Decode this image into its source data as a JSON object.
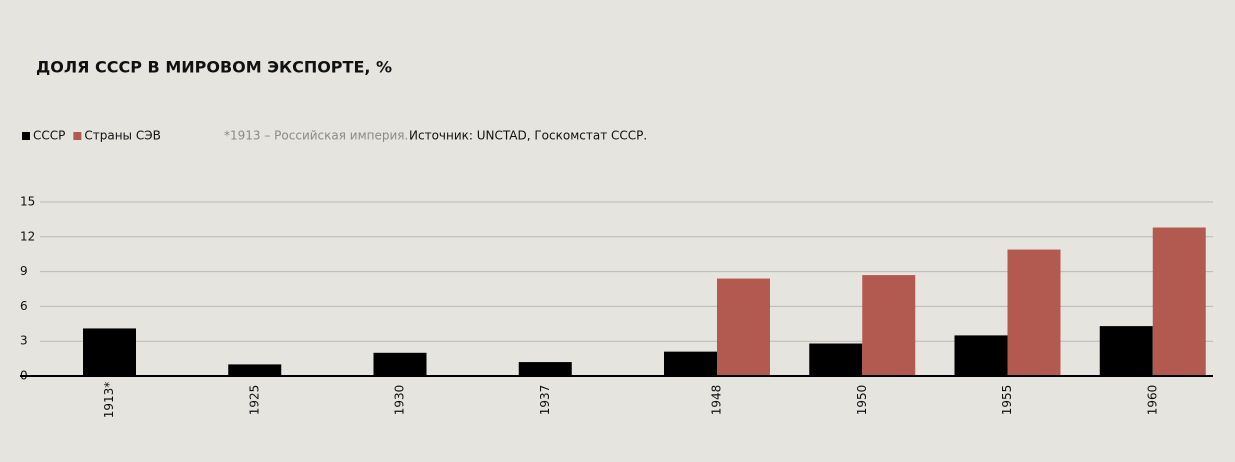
{
  "chart_data": {
    "type": "bar",
    "title": "ДОЛЯ СССР В МИРОВОМ ЭКСПОРТЕ, %",
    "note": "*1913 – Российская империя.",
    "source": "Источник: UNCTAD, Госкомстат СССР.",
    "categories": [
      "1913*",
      "1925",
      "1930",
      "1937",
      "1948",
      "1950",
      "1955",
      "1960"
    ],
    "series": [
      {
        "name": "СССР",
        "color": "#000000",
        "values": [
          4.1,
          1.0,
          2.0,
          1.2,
          2.1,
          2.8,
          3.5,
          4.3
        ]
      },
      {
        "name": "Страны СЭВ",
        "color": "#b35a50",
        "values": [
          null,
          null,
          null,
          null,
          8.4,
          8.7,
          10.9,
          12.8
        ]
      }
    ],
    "ylim": [
      0,
      15
    ],
    "yticks": [
      0,
      3,
      6,
      9,
      12,
      15
    ],
    "grid": true
  }
}
